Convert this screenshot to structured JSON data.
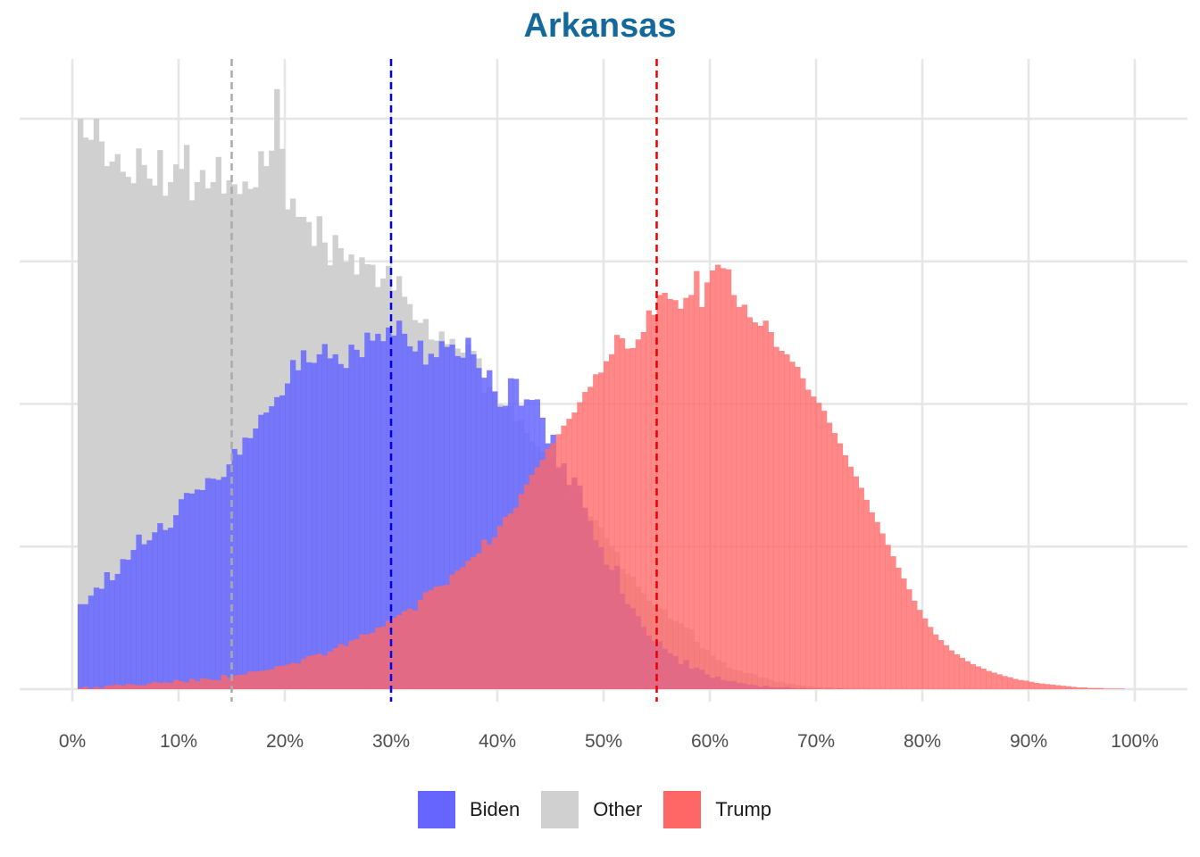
{
  "chart_data": {
    "type": "histogram",
    "title": "Arkansas",
    "xlabel": "",
    "ylabel": "",
    "x_unit": "%",
    "xlim": [
      0,
      100
    ],
    "x_ticks": [
      "0%",
      "10%",
      "20%",
      "30%",
      "40%",
      "50%",
      "60%",
      "70%",
      "80%",
      "90%",
      "100%"
    ],
    "y_axis_labels_shown": false,
    "ylim": [
      0,
      1.1
    ],
    "y_gridlines": [
      0,
      0.25,
      0.5,
      0.75,
      1.0
    ],
    "grid": true,
    "legend_position": "bottom",
    "bin_width": 0.5,
    "bin_starts": {
      "Biden": 0.5,
      "Other": 0.5,
      "Trump": 0.5
    },
    "series": [
      {
        "name": "Biden",
        "color": "#6666ff",
        "mean_line": 30,
        "values": [
          0.149,
          0.149,
          0.164,
          0.178,
          0.176,
          0.205,
          0.191,
          0.202,
          0.228,
          0.227,
          0.244,
          0.271,
          0.254,
          0.261,
          0.275,
          0.291,
          0.279,
          0.283,
          0.305,
          0.333,
          0.344,
          0.343,
          0.35,
          0.349,
          0.37,
          0.369,
          0.367,
          0.372,
          0.394,
          0.421,
          0.411,
          0.441,
          0.44,
          0.457,
          0.481,
          0.485,
          0.496,
          0.512,
          0.515,
          0.536,
          0.577,
          0.559,
          0.594,
          0.573,
          0.572,
          0.587,
          0.605,
          0.58,
          0.587,
          0.57,
          0.563,
          0.604,
          0.595,
          0.582,
          0.625,
          0.611,
          0.623,
          0.61,
          0.634,
          0.62,
          0.646,
          0.623,
          0.601,
          0.592,
          0.611,
          0.569,
          0.588,
          0.582,
          0.61,
          0.6,
          0.604,
          0.584,
          0.581,
          0.616,
          0.587,
          0.563,
          0.546,
          0.559,
          0.522,
          0.495,
          0.497,
          0.545,
          0.544,
          0.497,
          0.508,
          0.507,
          0.508,
          0.476,
          0.431,
          0.446,
          0.388,
          0.396,
          0.358,
          0.371,
          0.357,
          0.318,
          0.295,
          0.261,
          0.249,
          0.218,
          0.209,
          0.216,
          0.167,
          0.149,
          0.142,
          0.128,
          0.109,
          0.094,
          0.085,
          0.084,
          0.071,
          0.063,
          0.058,
          0.044,
          0.051,
          0.036,
          0.038,
          0.034,
          0.026,
          0.02,
          0.022,
          0.016,
          0.014,
          0.014,
          0.011,
          0.01,
          0.008,
          0.007,
          0.004,
          0.006,
          0.004,
          0.003,
          0.003,
          0.004,
          0.002,
          0.001,
          0.002,
          0.001,
          0.001,
          0.001,
          0.0,
          0.001,
          0.0,
          0.001,
          0.0,
          0.0,
          0.0,
          0.0,
          0.0,
          0.0,
          0.0,
          0.0,
          0.0,
          0.0,
          0.0,
          0.0,
          0.0,
          0.0,
          0.0,
          0.0,
          0.0,
          0.0,
          0.0,
          0.0,
          0.0,
          0.0,
          0.0,
          0.0,
          0.0,
          0.0,
          0.0,
          0.0,
          0.0,
          0.0,
          0.0,
          0.0,
          0.0,
          0.0,
          0.0,
          0.0,
          0.0,
          0.0,
          0.0,
          0.0,
          0.0,
          0.0,
          0.0,
          0.0,
          0.0,
          0.0,
          0.0,
          0.0,
          0.0,
          0.0,
          0.0,
          0.0,
          0.0,
          0.0
        ]
      },
      {
        "name": "Other",
        "color": "#d0d0d0",
        "mean_line": 15,
        "values": [
          1.0,
          0.967,
          0.963,
          1.0,
          0.96,
          0.917,
          0.925,
          0.938,
          0.907,
          0.898,
          0.887,
          0.948,
          0.919,
          0.895,
          0.883,
          0.945,
          0.865,
          0.889,
          0.92,
          0.912,
          0.954,
          0.857,
          0.889,
          0.91,
          0.878,
          0.889,
          0.933,
          0.869,
          0.892,
          0.885,
          0.868,
          0.89,
          0.877,
          0.88,
          0.943,
          0.917,
          0.944,
          1.052,
          0.947,
          0.841,
          0.86,
          0.828,
          0.828,
          0.819,
          0.777,
          0.829,
          0.783,
          0.743,
          0.796,
          0.773,
          0.749,
          0.762,
          0.727,
          0.757,
          0.745,
          0.744,
          0.705,
          0.72,
          0.742,
          0.699,
          0.724,
          0.688,
          0.675,
          0.647,
          0.642,
          0.649,
          0.613,
          0.611,
          0.627,
          0.605,
          0.614,
          0.597,
          0.59,
          0.604,
          0.593,
          0.58,
          0.52,
          0.53,
          0.521,
          0.5,
          0.493,
          0.496,
          0.469,
          0.472,
          0.449,
          0.435,
          0.425,
          0.417,
          0.414,
          0.401,
          0.391,
          0.369,
          0.342,
          0.365,
          0.343,
          0.311,
          0.303,
          0.296,
          0.284,
          0.265,
          0.251,
          0.241,
          0.211,
          0.202,
          0.197,
          0.18,
          0.168,
          0.155,
          0.148,
          0.141,
          0.139,
          0.124,
          0.12,
          0.115,
          0.108,
          0.105,
          0.083,
          0.072,
          0.069,
          0.059,
          0.051,
          0.047,
          0.038,
          0.034,
          0.033,
          0.029,
          0.028,
          0.026,
          0.021,
          0.02,
          0.017,
          0.013,
          0.013,
          0.01,
          0.009,
          0.007,
          0.006,
          0.005,
          0.004,
          0.004,
          0.003,
          0.003,
          0.002,
          0.002,
          0.001,
          0.001,
          0.001,
          0.001,
          0.001,
          0.0,
          0.0,
          0.0,
          0.0,
          0.0,
          0.0,
          0.0,
          0.0,
          0.0,
          0.0,
          0.0,
          0.0,
          0.0,
          0.0,
          0.0,
          0.0,
          0.0,
          0.0,
          0.0,
          0.0,
          0.0,
          0.0,
          0.0,
          0.0,
          0.0,
          0.0,
          0.0,
          0.0,
          0.0,
          0.0,
          0.0,
          0.0,
          0.0,
          0.0,
          0.0,
          0.0,
          0.0,
          0.0,
          0.0,
          0.0,
          0.0,
          0.0,
          0.0,
          0.0,
          0.0,
          0.0,
          0.0,
          0.0,
          0.0,
          0.0,
          0.0,
          0.0,
          0.0,
          0.0,
          0.0
        ]
      },
      {
        "name": "Trump",
        "color": "#ff6666",
        "mean_line": 55,
        "values": [
          0.002,
          0.004,
          0.001,
          0.004,
          0.002,
          0.006,
          0.007,
          0.008,
          0.006,
          0.009,
          0.008,
          0.007,
          0.007,
          0.01,
          0.013,
          0.011,
          0.012,
          0.011,
          0.016,
          0.014,
          0.012,
          0.018,
          0.014,
          0.019,
          0.018,
          0.016,
          0.016,
          0.025,
          0.02,
          0.024,
          0.025,
          0.026,
          0.031,
          0.031,
          0.032,
          0.033,
          0.035,
          0.04,
          0.041,
          0.043,
          0.046,
          0.045,
          0.053,
          0.058,
          0.06,
          0.062,
          0.059,
          0.066,
          0.072,
          0.079,
          0.076,
          0.085,
          0.088,
          0.096,
          0.096,
          0.099,
          0.108,
          0.11,
          0.12,
          0.125,
          0.13,
          0.137,
          0.141,
          0.138,
          0.157,
          0.17,
          0.174,
          0.18,
          0.181,
          0.183,
          0.201,
          0.208,
          0.214,
          0.225,
          0.232,
          0.238,
          0.262,
          0.254,
          0.266,
          0.286,
          0.302,
          0.308,
          0.318,
          0.342,
          0.359,
          0.376,
          0.389,
          0.402,
          0.422,
          0.431,
          0.447,
          0.462,
          0.474,
          0.485,
          0.503,
          0.521,
          0.53,
          0.552,
          0.555,
          0.575,
          0.587,
          0.621,
          0.615,
          0.597,
          0.598,
          0.613,
          0.626,
          0.664,
          0.656,
          0.691,
          0.695,
          0.684,
          0.682,
          0.667,
          0.686,
          0.691,
          0.733,
          0.67,
          0.713,
          0.734,
          0.744,
          0.738,
          0.736,
          0.691,
          0.67,
          0.674,
          0.652,
          0.643,
          0.637,
          0.646,
          0.626,
          0.6,
          0.593,
          0.587,
          0.574,
          0.565,
          0.545,
          0.525,
          0.513,
          0.502,
          0.488,
          0.467,
          0.449,
          0.431,
          0.41,
          0.39,
          0.373,
          0.353,
          0.332,
          0.31,
          0.293,
          0.273,
          0.253,
          0.233,
          0.213,
          0.194,
          0.175,
          0.155,
          0.139,
          0.124,
          0.109,
          0.096,
          0.086,
          0.077,
          0.068,
          0.061,
          0.055,
          0.049,
          0.044,
          0.04,
          0.036,
          0.032,
          0.029,
          0.026,
          0.023,
          0.021,
          0.018,
          0.016,
          0.015,
          0.013,
          0.011,
          0.01,
          0.009,
          0.008,
          0.007,
          0.006,
          0.005,
          0.004,
          0.003,
          0.003,
          0.002,
          0.002,
          0.002,
          0.001,
          0.001,
          0.001,
          0.001,
          0.0,
          0.0
        ]
      }
    ]
  }
}
